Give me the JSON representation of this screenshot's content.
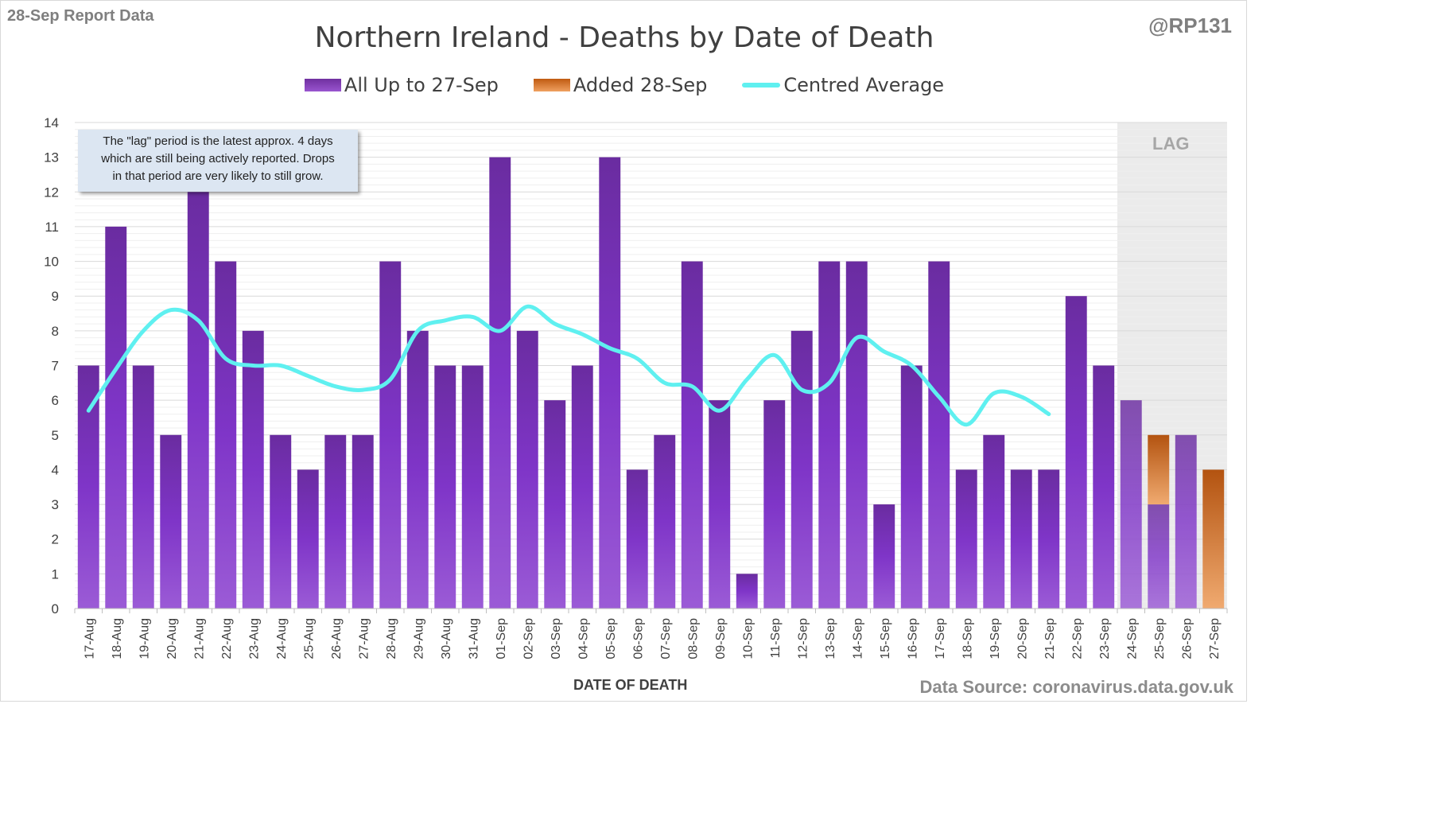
{
  "header": {
    "report_label": "28-Sep Report Data",
    "handle": "@RP131"
  },
  "footer": {
    "source": "Data Source: coronavirus.data.gov.uk"
  },
  "note": {
    "line1": "The \"lag\" period is the latest approx. 4 days",
    "line2": "which are still being actively reported.  Drops",
    "line3": "in that period are very likely to still grow."
  },
  "lag_label": "LAG",
  "colors": {
    "bar_main": "#7030a0",
    "bar_added": "#e07a30",
    "average_line": "#5ff0f0",
    "lag_shade": "#ebebeb"
  },
  "chart_data": {
    "type": "bar",
    "title": "Northern Ireland - Deaths by Date of Death",
    "xlabel": "DATE OF DEATH",
    "ylabel": "",
    "ylim": [
      0,
      14
    ],
    "yticks": [
      0,
      1,
      2,
      3,
      4,
      5,
      6,
      7,
      8,
      9,
      10,
      11,
      12,
      13,
      14
    ],
    "grid": true,
    "legend_position": "top",
    "stacked": true,
    "lag_categories": [
      "24-Sep",
      "25-Sep",
      "26-Sep",
      "27-Sep"
    ],
    "categories": [
      "17-Aug",
      "18-Aug",
      "19-Aug",
      "20-Aug",
      "21-Aug",
      "22-Aug",
      "23-Aug",
      "24-Aug",
      "25-Aug",
      "26-Aug",
      "27-Aug",
      "28-Aug",
      "29-Aug",
      "30-Aug",
      "31-Aug",
      "01-Sep",
      "02-Sep",
      "03-Sep",
      "04-Sep",
      "05-Sep",
      "06-Sep",
      "07-Sep",
      "08-Sep",
      "09-Sep",
      "10-Sep",
      "11-Sep",
      "12-Sep",
      "13-Sep",
      "14-Sep",
      "15-Sep",
      "16-Sep",
      "17-Sep",
      "18-Sep",
      "19-Sep",
      "20-Sep",
      "21-Sep",
      "22-Sep",
      "23-Sep",
      "24-Sep",
      "25-Sep",
      "26-Sep",
      "27-Sep"
    ],
    "series": [
      {
        "name": "All Up to 27-Sep",
        "type": "bar",
        "values": [
          7,
          11,
          7,
          5,
          12,
          10,
          8,
          5,
          4,
          5,
          5,
          10,
          8,
          7,
          7,
          13,
          8,
          6,
          7,
          13,
          4,
          5,
          10,
          6,
          1,
          6,
          8,
          10,
          10,
          3,
          7,
          10,
          4,
          5,
          4,
          4,
          9,
          7,
          6,
          3,
          5,
          0
        ]
      },
      {
        "name": "Added 28-Sep",
        "type": "bar",
        "values": [
          0,
          0,
          0,
          0,
          0,
          0,
          0,
          0,
          0,
          0,
          0,
          0,
          0,
          0,
          0,
          0,
          0,
          0,
          0,
          0,
          0,
          0,
          0,
          0,
          0,
          0,
          0,
          0,
          0,
          0,
          0,
          0,
          0,
          0,
          0,
          0,
          0,
          0,
          0,
          2,
          0,
          4
        ]
      },
      {
        "name": "Centred Average",
        "type": "line",
        "values": [
          5.7,
          6.9,
          8.0,
          8.6,
          8.3,
          7.2,
          7.0,
          7.0,
          6.7,
          6.4,
          6.3,
          6.6,
          8.0,
          8.3,
          8.4,
          8.0,
          8.7,
          8.2,
          7.9,
          7.5,
          7.2,
          6.5,
          6.4,
          5.7,
          6.6,
          7.3,
          6.3,
          6.5,
          7.8,
          7.4,
          7.0,
          6.1,
          5.3,
          6.2,
          6.1,
          5.6,
          null,
          null,
          null,
          null,
          null,
          null
        ]
      }
    ]
  }
}
